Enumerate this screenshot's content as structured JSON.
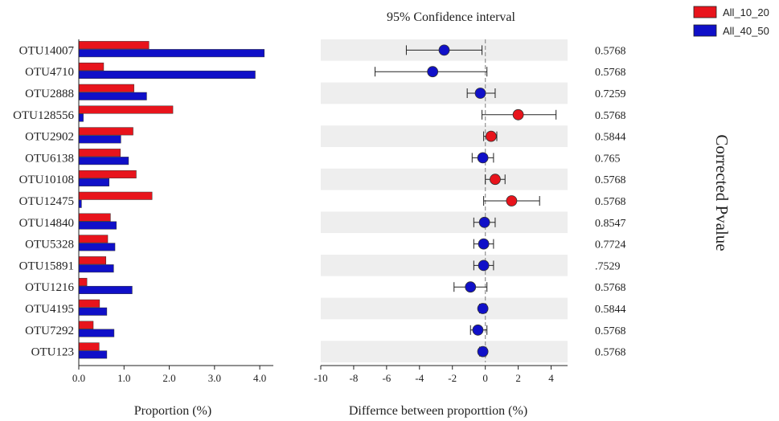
{
  "chart_data": [
    {
      "type": "bar",
      "orientation": "horizontal",
      "categories": [
        "OTU14007",
        "OTU4710",
        "OTU2888",
        "OTU128556",
        "OTU2902",
        "OTU6138",
        "OTU10108",
        "OTU12475",
        "OTU14840",
        "OTU5328",
        "OTU15891",
        "OTU1216",
        "OTU4195",
        "OTU7292",
        "OTU123"
      ],
      "series": [
        {
          "name": "All_10_20",
          "color": "#e8141c",
          "values": [
            1.55,
            0.55,
            1.22,
            2.08,
            1.2,
            0.92,
            1.27,
            1.62,
            0.7,
            0.64,
            0.6,
            0.18,
            0.46,
            0.32,
            0.45
          ]
        },
        {
          "name": "All_40_50",
          "color": "#1010c8",
          "values": [
            4.1,
            3.9,
            1.5,
            0.1,
            0.93,
            1.1,
            0.67,
            0.06,
            0.83,
            0.8,
            0.77,
            1.18,
            0.62,
            0.78,
            0.62
          ]
        }
      ],
      "xlabel": "Proportion (%)",
      "xticks": [
        "0.0",
        "1.0",
        "2.0",
        "3.0",
        "4.0"
      ],
      "xlim": [
        0,
        4.3
      ],
      "grid": false
    },
    {
      "type": "scatter",
      "title": "95% Confidence interval",
      "xlabel": "Differnce between proporttion (%)",
      "xticks": [
        "-10",
        "-8",
        "-6",
        "-4",
        "-2",
        "0",
        "2",
        "4"
      ],
      "xlim": [
        -10,
        5
      ],
      "reference_line": 0,
      "categories": [
        "OTU14007",
        "OTU4710",
        "OTU2888",
        "OTU128556",
        "OTU2902",
        "OTU6138",
        "OTU10108",
        "OTU12475",
        "OTU14840",
        "OTU5328",
        "OTU15891",
        "OTU1216",
        "OTU4195",
        "OTU7292",
        "OTU123"
      ],
      "points": [
        {
          "diff": -2.5,
          "low": -4.8,
          "high": -0.2,
          "group": "All_40_50"
        },
        {
          "diff": -3.2,
          "low": -6.7,
          "high": 0.1,
          "group": "All_40_50"
        },
        {
          "diff": -0.3,
          "low": -1.1,
          "high": 0.6,
          "group": "All_40_50"
        },
        {
          "diff": 2.0,
          "low": -0.2,
          "high": 4.3,
          "group": "All_10_20"
        },
        {
          "diff": 0.35,
          "low": -0.1,
          "high": 0.7,
          "group": "All_10_20"
        },
        {
          "diff": -0.15,
          "low": -0.8,
          "high": 0.5,
          "group": "All_40_50"
        },
        {
          "diff": 0.6,
          "low": 0.0,
          "high": 1.2,
          "group": "All_10_20"
        },
        {
          "diff": 1.6,
          "low": -0.1,
          "high": 3.3,
          "group": "All_10_20"
        },
        {
          "diff": -0.05,
          "low": -0.7,
          "high": 0.6,
          "group": "All_40_50"
        },
        {
          "diff": -0.1,
          "low": -0.7,
          "high": 0.5,
          "group": "All_40_50"
        },
        {
          "diff": -0.1,
          "low": -0.7,
          "high": 0.5,
          "group": "All_40_50"
        },
        {
          "diff": -0.9,
          "low": -1.9,
          "high": 0.1,
          "group": "All_40_50"
        },
        {
          "diff": -0.15,
          "low": -0.35,
          "high": 0.05,
          "group": "All_40_50"
        },
        {
          "diff": -0.45,
          "low": -0.9,
          "high": 0.1,
          "group": "All_40_50"
        },
        {
          "diff": -0.15,
          "low": -0.35,
          "high": 0.05,
          "group": "All_40_50"
        }
      ],
      "group_colors": {
        "All_10_20": "#e8141c",
        "All_40_50": "#1010c8"
      },
      "shaded_rows": "alternating"
    }
  ],
  "pvalues": {
    "label": "Corrected Pvalue",
    "values": [
      "0.5768",
      "0.5768",
      "0.7259",
      "0.5768",
      "0.5844",
      "0.765",
      "0.5768",
      "0.5768",
      "0.8547",
      "0.7724",
      ".7529",
      "0.5768",
      "0.5844",
      "0.5768",
      "0.5768"
    ]
  },
  "legend": {
    "placement": "top-right",
    "items": [
      {
        "label": "All_10_20",
        "color": "#e8141c"
      },
      {
        "label": "All_40_50",
        "color": "#1010c8"
      }
    ]
  }
}
